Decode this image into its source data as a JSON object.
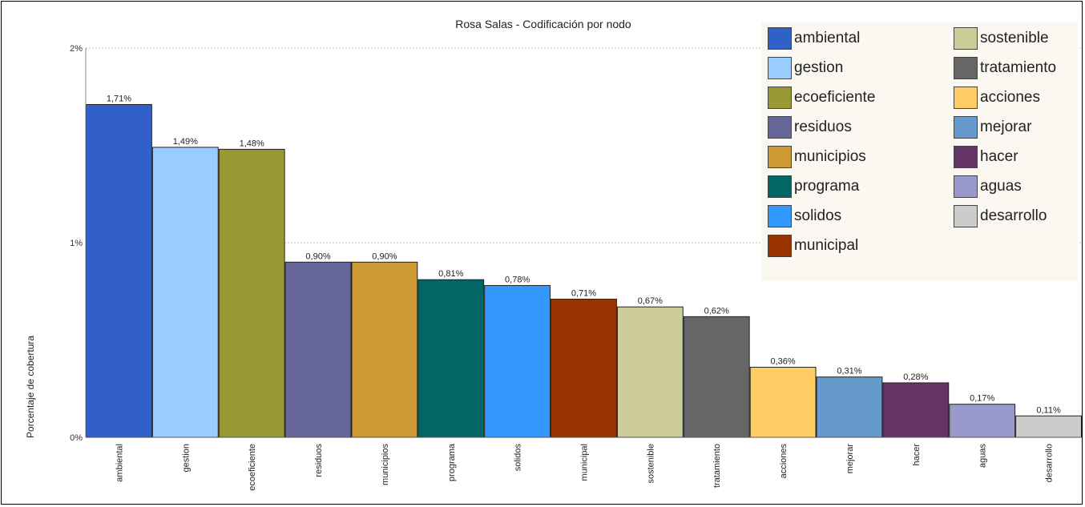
{
  "chart_data": {
    "type": "bar",
    "title": "Rosa Salas - Codificación por nodo",
    "xlabel": "",
    "ylabel": "Porcentaje de cobertura",
    "ylim": [
      0,
      2
    ],
    "yticks": [
      {
        "value": 0,
        "label": "0%"
      },
      {
        "value": 1,
        "label": "1%"
      },
      {
        "value": 2,
        "label": "2%"
      }
    ],
    "grid": true,
    "legend_position": "top-right",
    "categories": [
      "ambiental",
      "gestion",
      "ecoeficiente",
      "residuos",
      "municipios",
      "programa",
      "solidos",
      "municipal",
      "sostenible",
      "tratamiento",
      "acciones",
      "mejorar",
      "hacer",
      "aguas",
      "desarrollo"
    ],
    "values": [
      1.71,
      1.49,
      1.48,
      0.9,
      0.9,
      0.81,
      0.78,
      0.71,
      0.67,
      0.62,
      0.36,
      0.31,
      0.28,
      0.17,
      0.11
    ],
    "value_labels": [
      "1,71%",
      "1,49%",
      "1,48%",
      "0,90%",
      "0,90%",
      "0,81%",
      "0,78%",
      "0,71%",
      "0,67%",
      "0,62%",
      "0,36%",
      "0,31%",
      "0,28%",
      "0,17%",
      "0,11%"
    ],
    "colors": [
      "#3060c8",
      "#99ccff",
      "#999933",
      "#666699",
      "#cc9933",
      "#006666",
      "#3399ff",
      "#993300",
      "#cccc99",
      "#666666",
      "#ffcc66",
      "#6699cc",
      "#663366",
      "#9999cc",
      "#cccccc"
    ]
  },
  "legend": {
    "items": [
      {
        "label": "ambiental",
        "color": "#3060c8"
      },
      {
        "label": "gestion",
        "color": "#99ccff"
      },
      {
        "label": "ecoeficiente",
        "color": "#999933"
      },
      {
        "label": "residuos",
        "color": "#666699"
      },
      {
        "label": "municipios",
        "color": "#cc9933"
      },
      {
        "label": "programa",
        "color": "#006666"
      },
      {
        "label": "solidos",
        "color": "#3399ff"
      },
      {
        "label": "municipal",
        "color": "#993300"
      },
      {
        "label": "sostenible",
        "color": "#cccc99"
      },
      {
        "label": "tratamiento",
        "color": "#666666"
      },
      {
        "label": "acciones",
        "color": "#ffcc66"
      },
      {
        "label": "mejorar",
        "color": "#6699cc"
      },
      {
        "label": "hacer",
        "color": "#663366"
      },
      {
        "label": "aguas",
        "color": "#9999cc"
      },
      {
        "label": "desarrollo",
        "color": "#cccccc"
      }
    ]
  }
}
